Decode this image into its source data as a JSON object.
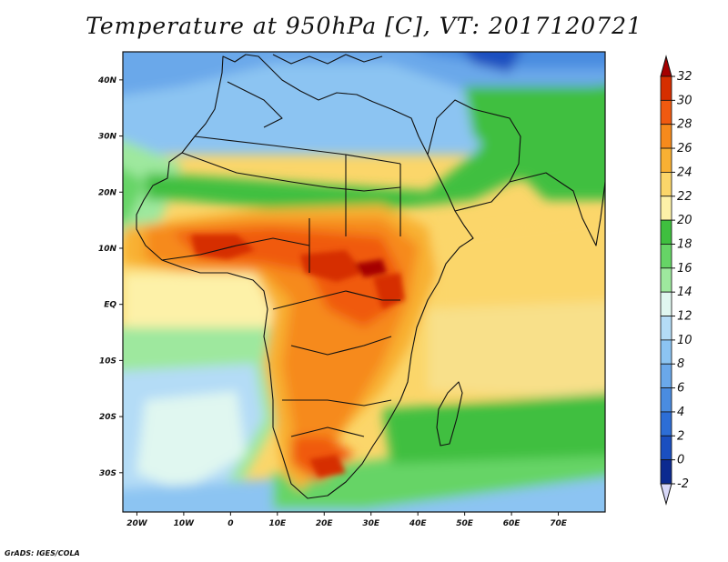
{
  "title": "Temperature at 950hPa [C], VT: 2017120721",
  "credit": "GrADS: IGES/COLA",
  "map": {
    "lon_range": [
      -23,
      80
    ],
    "lat_range": [
      -37,
      45
    ],
    "lat_ticks": [
      {
        "value": 40,
        "label": "40N"
      },
      {
        "value": 30,
        "label": "30N"
      },
      {
        "value": 20,
        "label": "20N"
      },
      {
        "value": 10,
        "label": "10N"
      },
      {
        "value": 0,
        "label": "EQ"
      },
      {
        "value": -10,
        "label": "10S"
      },
      {
        "value": -20,
        "label": "20S"
      },
      {
        "value": -30,
        "label": "30S"
      }
    ],
    "lon_ticks": [
      {
        "value": -20,
        "label": "20W"
      },
      {
        "value": -10,
        "label": "10W"
      },
      {
        "value": 0,
        "label": "0"
      },
      {
        "value": 10,
        "label": "10E"
      },
      {
        "value": 20,
        "label": "20E"
      },
      {
        "value": 30,
        "label": "30E"
      },
      {
        "value": 40,
        "label": "40E"
      },
      {
        "value": 50,
        "label": "50E"
      },
      {
        "value": 60,
        "label": "60E"
      },
      {
        "value": 70,
        "label": "70E"
      }
    ]
  },
  "colorbar": {
    "labels": [
      "32",
      "30",
      "28",
      "26",
      "24",
      "22",
      "20",
      "18",
      "16",
      "14",
      "12",
      "10",
      "8",
      "6",
      "4",
      "2",
      "0",
      "-2"
    ],
    "bins": [
      {
        "range": "> 32",
        "color": "#a50000"
      },
      {
        "range": "30-32",
        "color": "#d62e00"
      },
      {
        "range": "28-30",
        "color": "#f05a10"
      },
      {
        "range": "26-28",
        "color": "#f68a1c"
      },
      {
        "range": "24-26",
        "color": "#f8b033"
      },
      {
        "range": "22-24",
        "color": "#fbd66a"
      },
      {
        "range": "20-22",
        "color": "#fdf1a8"
      },
      {
        "range": "18-20",
        "color": "#3fbf3f"
      },
      {
        "range": "16-18",
        "color": "#66d466"
      },
      {
        "range": "14-16",
        "color": "#9ee89e"
      },
      {
        "range": "12-14",
        "color": "#e0f7f0"
      },
      {
        "range": "10-12",
        "color": "#b4dcf6"
      },
      {
        "range": "8-10",
        "color": "#8cc4f2"
      },
      {
        "range": "6-8",
        "color": "#6aa8ea"
      },
      {
        "range": "4-6",
        "color": "#4a8ce0"
      },
      {
        "range": "2-4",
        "color": "#2d6ed6"
      },
      {
        "range": "0-2",
        "color": "#1a4fc0"
      },
      {
        "range": "-2-0",
        "color": "#0c2a90"
      },
      {
        "range": "< -2",
        "color": "#d8d8f8"
      }
    ]
  }
}
